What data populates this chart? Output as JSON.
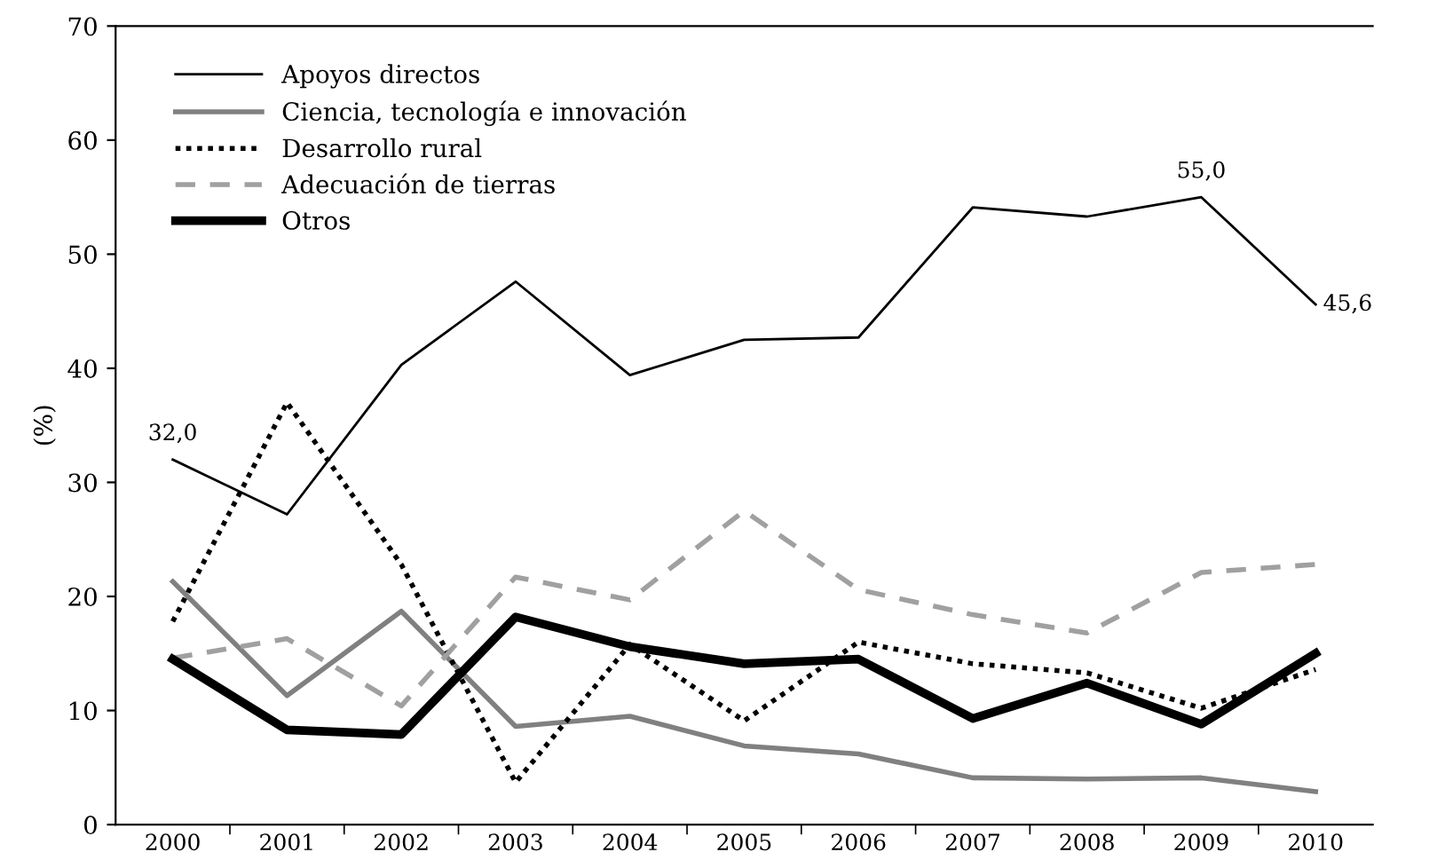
{
  "chart_data": {
    "type": "line",
    "ylabel": "(%)",
    "categories": [
      "2000",
      "2001",
      "2002",
      "2003",
      "2004",
      "2005",
      "2006",
      "2007",
      "2008",
      "2009",
      "2010"
    ],
    "series": [
      {
        "name": "Apoyos directos",
        "color": "#000000",
        "line_style": "solid",
        "values": [
          32.0,
          27.2,
          40.3,
          47.6,
          39.4,
          42.5,
          42.7,
          54.1,
          53.3,
          55.0,
          45.6
        ]
      },
      {
        "name": "Ciencia, tecnología e innovación",
        "color": "#808080",
        "line_style": "solid",
        "values": [
          21.3,
          11.3,
          18.7,
          8.6,
          9.5,
          6.9,
          6.2,
          4.1,
          4.0,
          4.1,
          2.9
        ]
      },
      {
        "name": "Desarrollo rural",
        "color": "#000000",
        "line_style": "dotted",
        "values": [
          17.8,
          37.0,
          22.8,
          3.7,
          15.8,
          9.1,
          16.0,
          14.1,
          13.3,
          10.2,
          13.6
        ]
      },
      {
        "name": "Adecuación de tierras",
        "color": "#a0a0a0",
        "line_style": "dashed",
        "values": [
          14.6,
          16.3,
          10.4,
          21.7,
          19.7,
          27.5,
          20.6,
          18.4,
          16.8,
          22.1,
          22.8
        ]
      },
      {
        "name": "Otros",
        "color": "#000000",
        "line_style": "solid",
        "values": [
          14.5,
          8.3,
          7.9,
          18.2,
          15.6,
          14.1,
          14.5,
          9.3,
          12.4,
          8.8,
          15.0
        ]
      }
    ],
    "annotations": [
      {
        "text": "32,0",
        "x": "2000",
        "y": 32.0
      },
      {
        "text": "55,0",
        "x": "2009",
        "y": 55.0
      },
      {
        "text": "45,6",
        "x": "2010",
        "y": 45.6
      }
    ],
    "ylim": [
      0,
      70
    ],
    "yticks": [
      0,
      10,
      20,
      30,
      40,
      50,
      60,
      70
    ],
    "grid": false,
    "legend": "top left",
    "marker": "none"
  }
}
